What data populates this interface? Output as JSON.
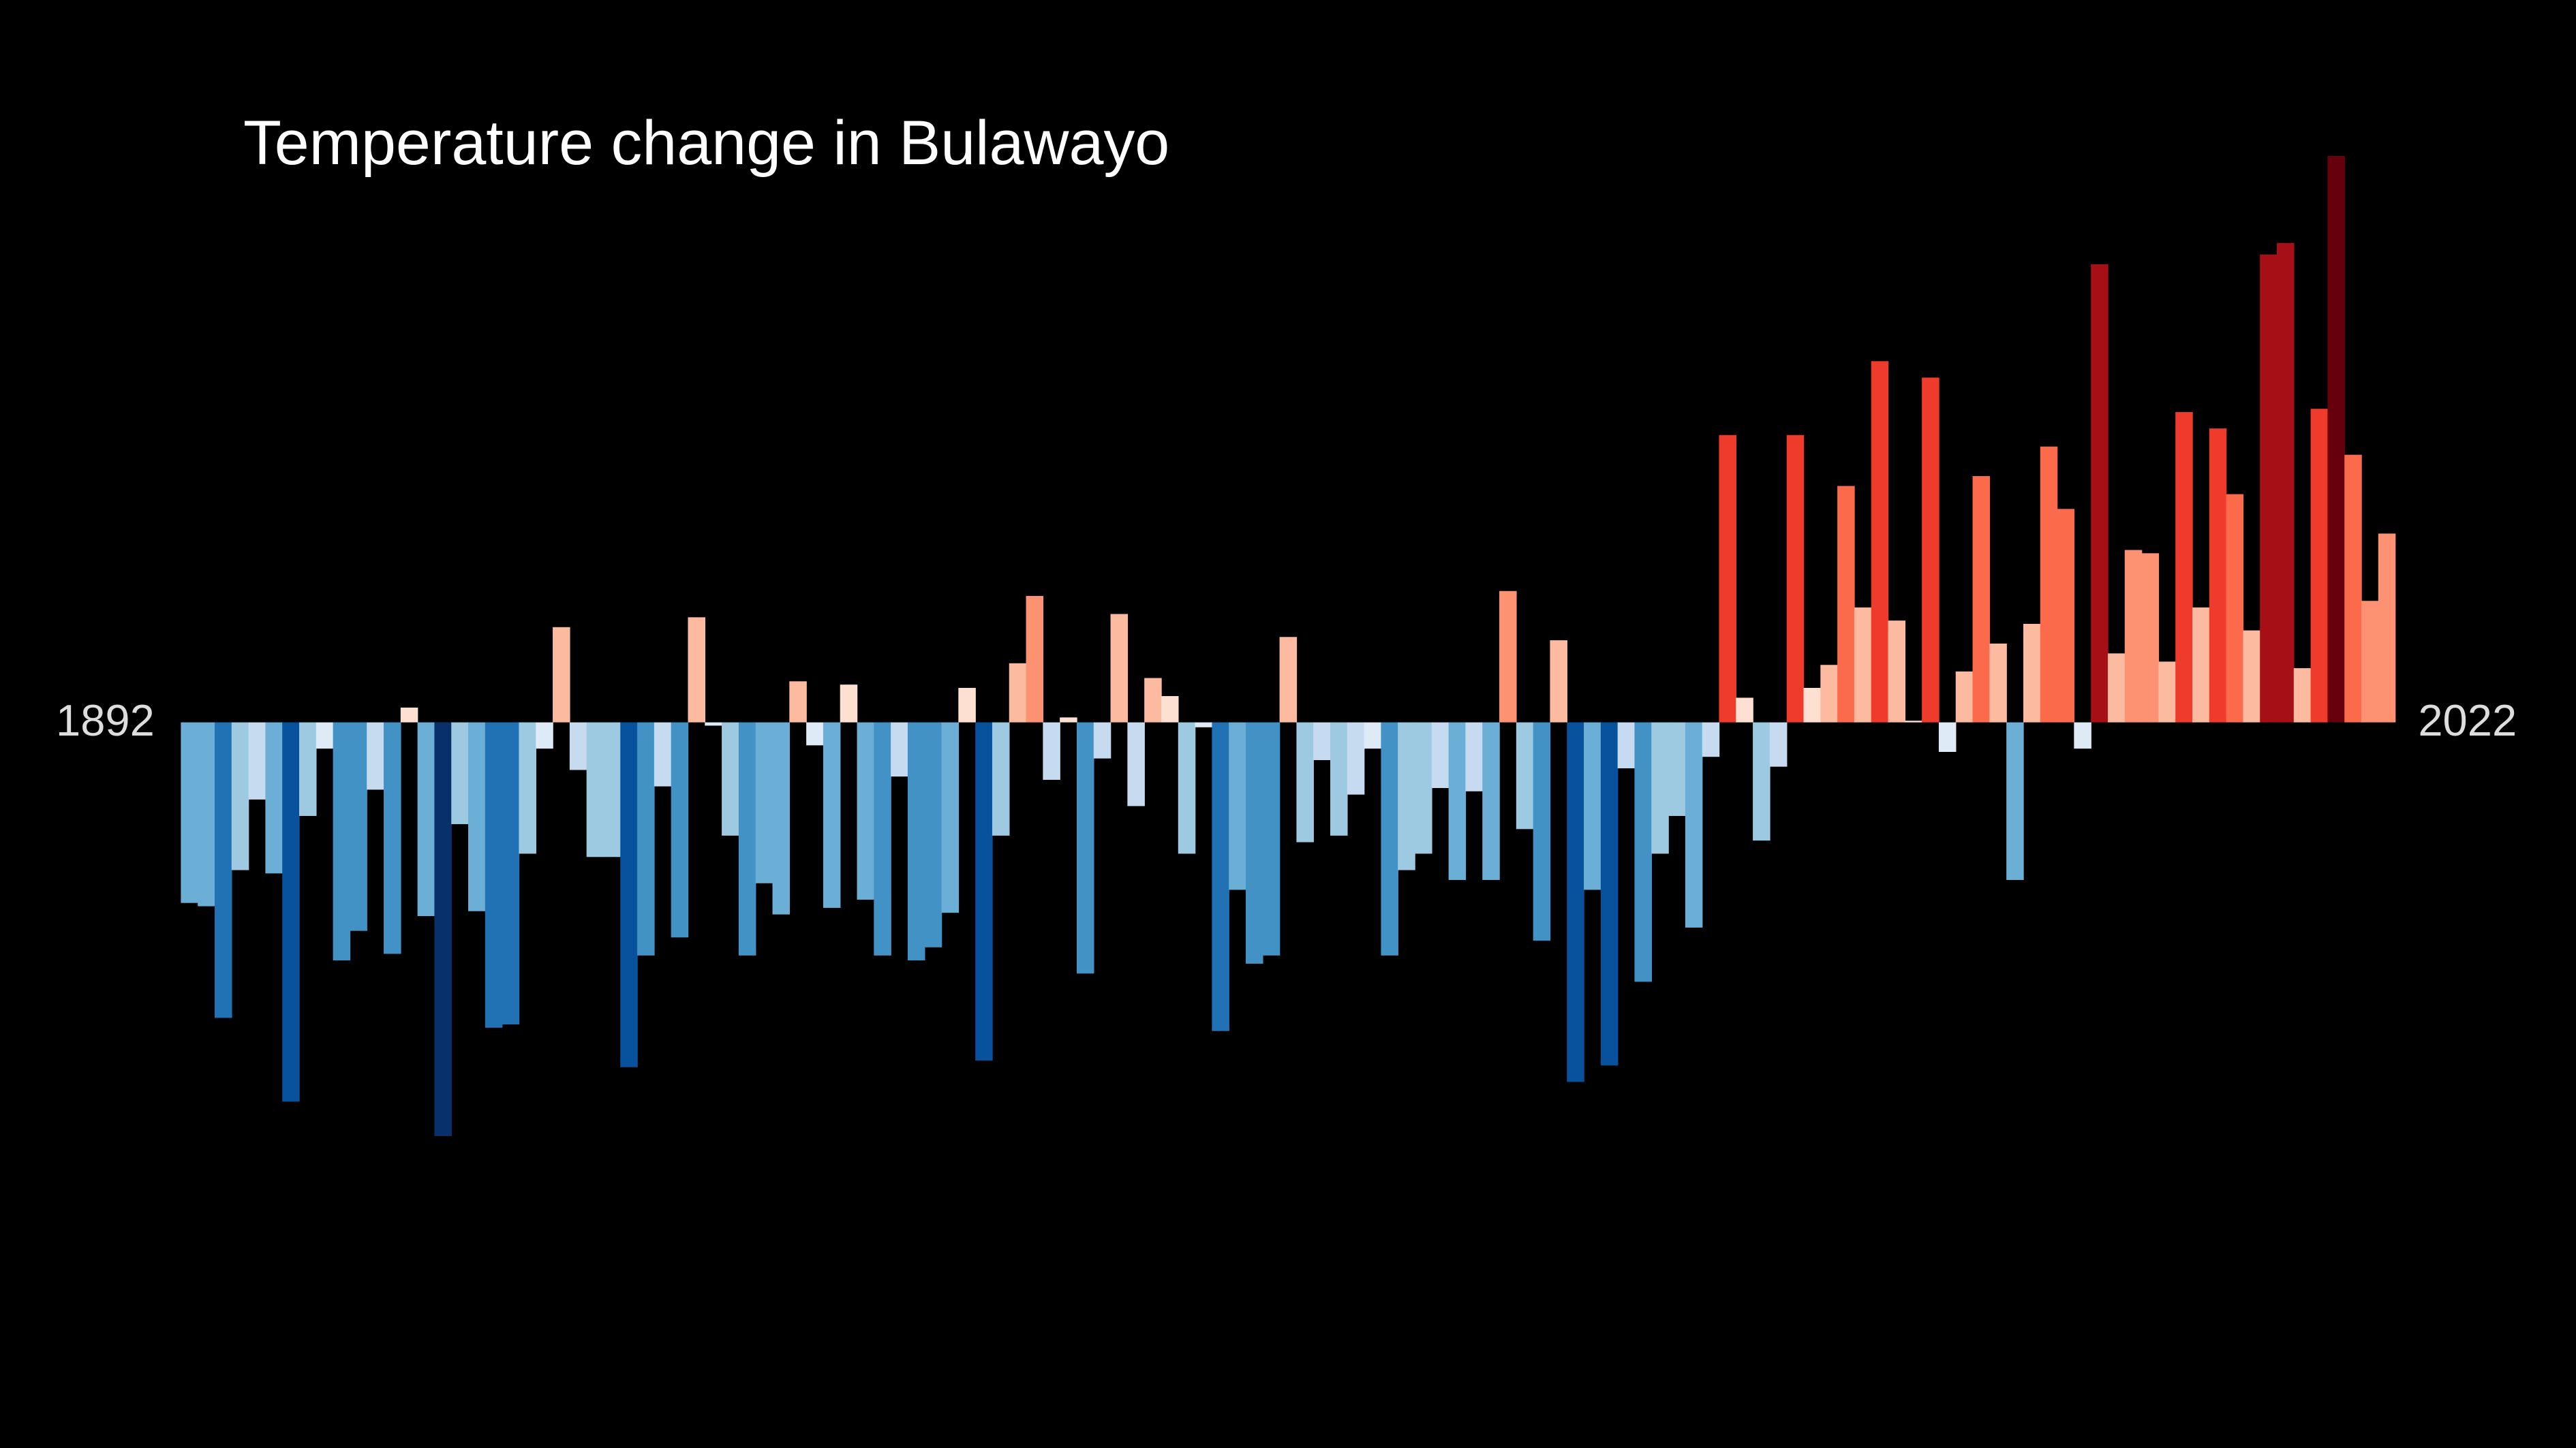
{
  "chart_data": {
    "type": "bar",
    "title": "Temperature change in Bulawayo",
    "categories": [
      "1892",
      null,
      null,
      null,
      null,
      null,
      null,
      null,
      null,
      null,
      null,
      null,
      null,
      null,
      null,
      null,
      null,
      null,
      null,
      null,
      null,
      null,
      null,
      null,
      null,
      null,
      null,
      null,
      null,
      null,
      null,
      null,
      null,
      null,
      null,
      null,
      null,
      null,
      null,
      null,
      null,
      null,
      null,
      null,
      null,
      null,
      null,
      null,
      null,
      null,
      null,
      null,
      null,
      null,
      null,
      null,
      null,
      null,
      null,
      null,
      null,
      null,
      null,
      null,
      null,
      null,
      null,
      null,
      null,
      null,
      null,
      null,
      null,
      null,
      null,
      null,
      null,
      null,
      null,
      null,
      null,
      null,
      null,
      null,
      null,
      null,
      null,
      null,
      null,
      null,
      null,
      null,
      null,
      null,
      null,
      null,
      null,
      null,
      null,
      null,
      null,
      null,
      null,
      null,
      null,
      null,
      null,
      null,
      null,
      null,
      null,
      null,
      null,
      null,
      null,
      null,
      null,
      null,
      null,
      null,
      null,
      null,
      null,
      null,
      null,
      null,
      null,
      null,
      null,
      null,
      "2022"
    ],
    "values": [
      -1.1,
      -1.12,
      -1.8,
      -0.9,
      -0.47,
      -0.92,
      -2.31,
      -0.57,
      -0.16,
      -1.45,
      -1.27,
      -0.41,
      -1.41,
      0.09,
      -1.18,
      -2.52,
      -0.62,
      -1.15,
      -1.86,
      -1.84,
      -0.8,
      -0.16,
      0.58,
      -0.29,
      -0.82,
      -0.82,
      -2.1,
      -1.42,
      -0.39,
      -1.31,
      0.64,
      -0.02,
      -0.69,
      -1.42,
      -0.98,
      -1.17,
      0.25,
      -0.14,
      -1.13,
      0.23,
      -1.08,
      -1.42,
      -0.33,
      -1.45,
      -1.37,
      -1.16,
      0.21,
      -2.06,
      -0.69,
      0.36,
      0.77,
      -0.35,
      0.03,
      -1.53,
      -0.22,
      0.66,
      -0.51,
      0.27,
      0.16,
      -0.8,
      -0.03,
      -1.88,
      -1.02,
      -1.47,
      -1.42,
      0.52,
      -0.73,
      -0.23,
      -0.69,
      -0.44,
      -0.16,
      -1.42,
      -0.9,
      -0.8,
      -0.4,
      -0.96,
      -0.42,
      -0.96,
      0.8,
      -0.65,
      -1.33,
      0.5,
      -2.19,
      -1.02,
      -2.09,
      -0.28,
      -1.58,
      -0.8,
      -0.57,
      -1.25,
      -0.21,
      1.75,
      0.15,
      -0.72,
      -0.27,
      1.75,
      0.21,
      0.35,
      1.44,
      0.7,
      2.2,
      0.62,
      0.01,
      2.1,
      -0.18,
      0.31,
      1.5,
      0.48,
      -0.96,
      0.6,
      1.68,
      1.3,
      -0.16,
      2.79,
      0.42,
      1.05,
      1.03,
      0.37,
      1.89,
      0.7,
      1.79,
      1.39,
      0.56,
      2.85,
      2.92,
      0.33,
      1.91,
      3.45,
      1.63,
      0.74,
      1.15
    ],
    "colormap": [
      "#08306b",
      "#08519c",
      "#2171b5",
      "#4292c6",
      "#6baed6",
      "#9ecae1",
      "#c6dbef",
      "#deebf7",
      "#fee0d2",
      "#fcbba1",
      "#fc9272",
      "#fb6a4a",
      "#ef3b2c",
      "#cb181d",
      "#a50f15",
      "#67000d"
    ],
    "ylim": [
      -4.4,
      4.0
    ]
  }
}
